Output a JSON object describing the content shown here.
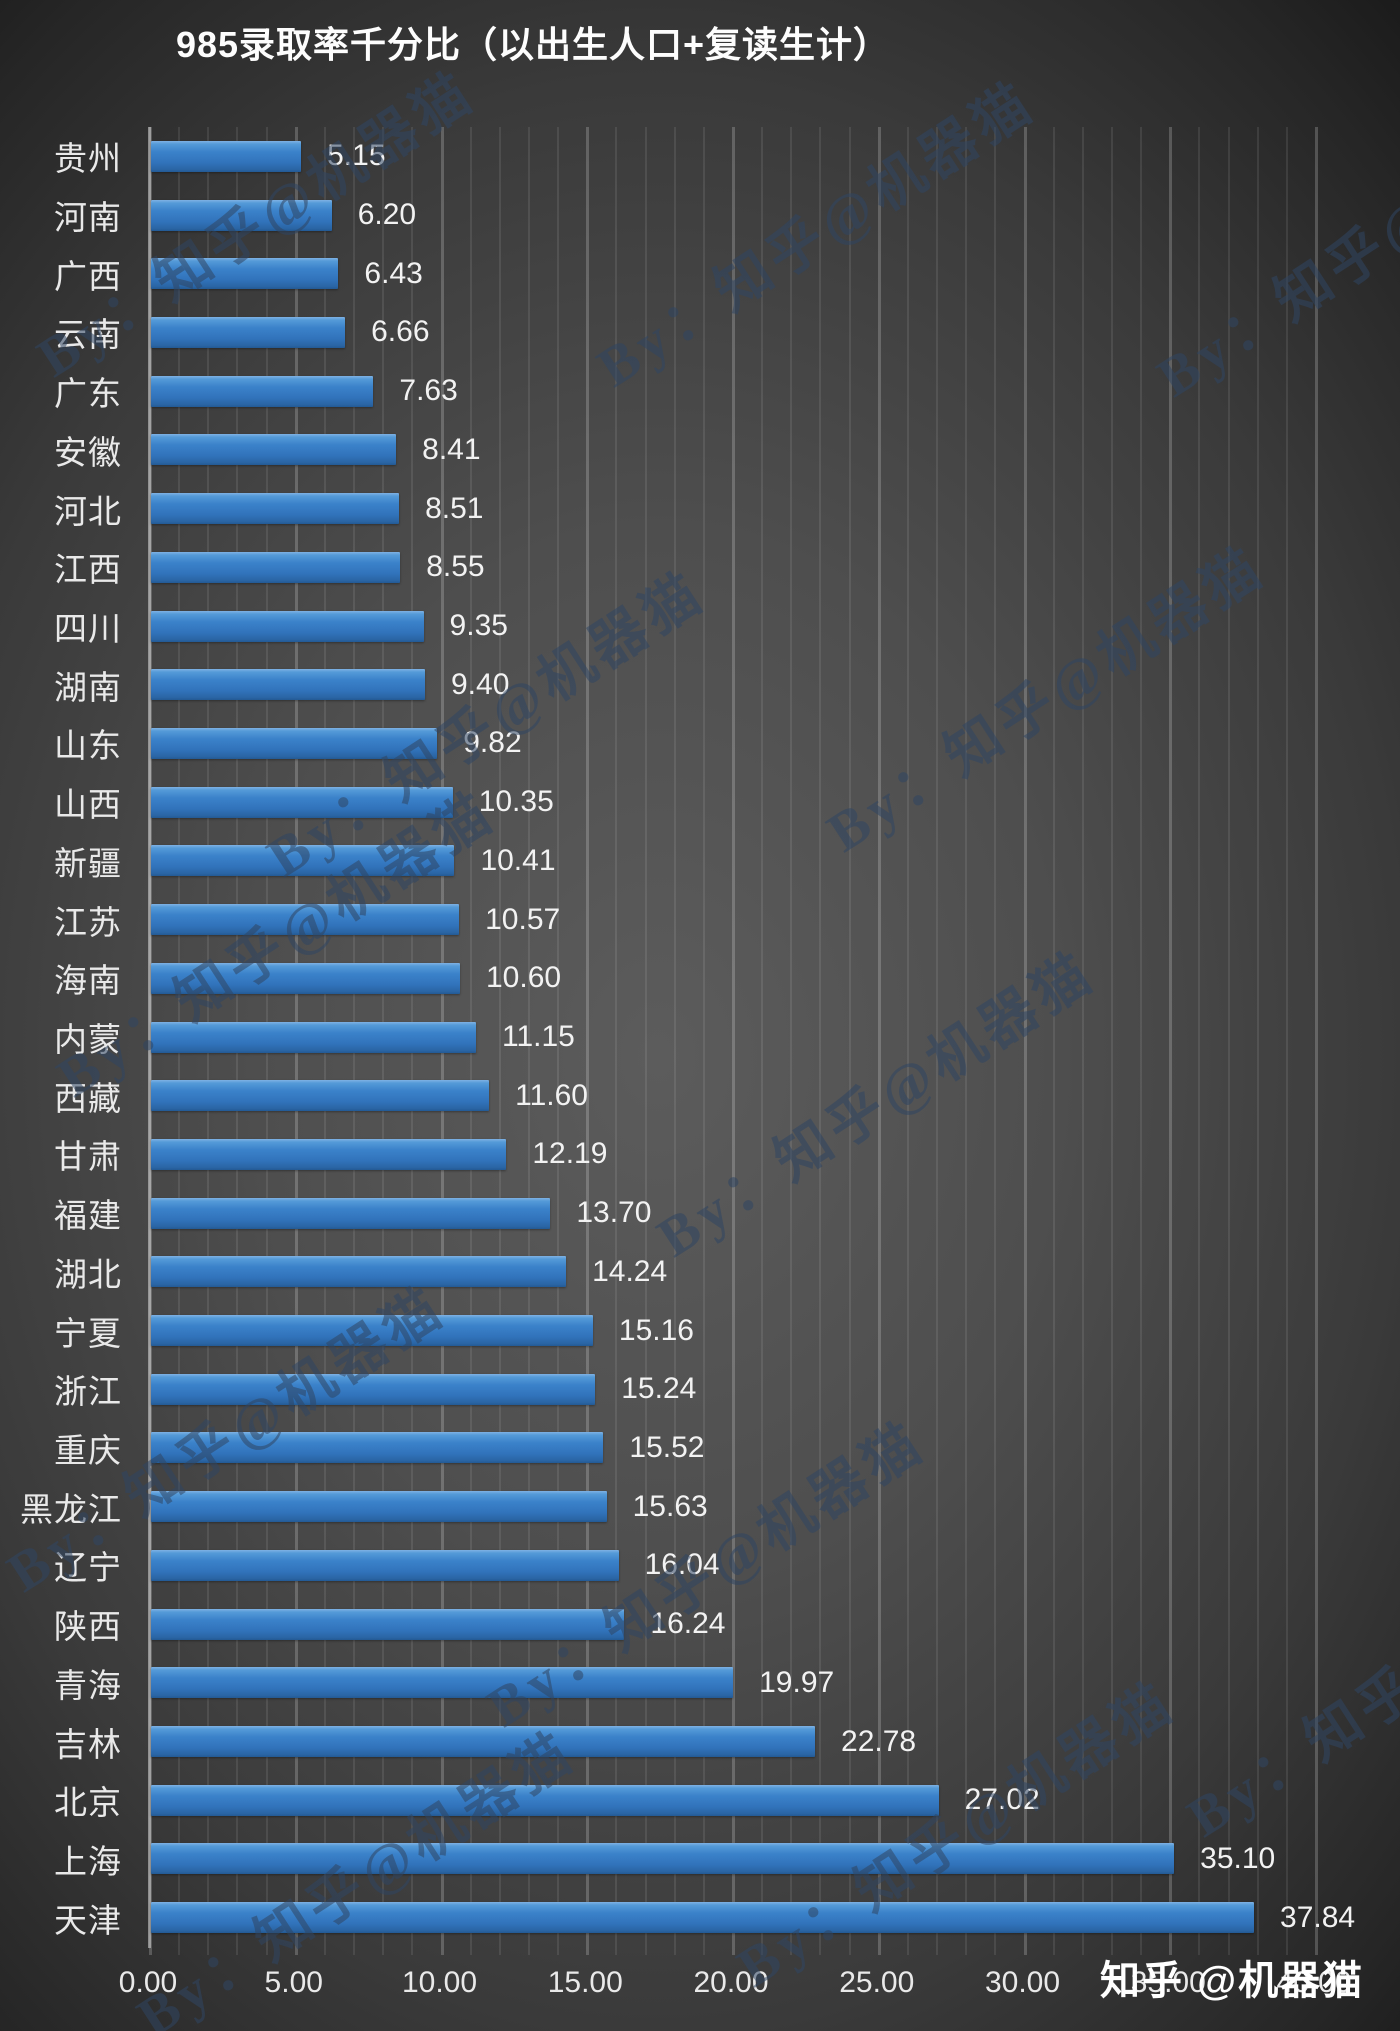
{
  "chart_data": {
    "type": "bar",
    "orientation": "horizontal",
    "title": "985录取率千分比（以出生人口+复读生计）",
    "categories": [
      "贵州",
      "河南",
      "广西",
      "云南",
      "广东",
      "安徽",
      "河北",
      "江西",
      "四川",
      "湖南",
      "山东",
      "山西",
      "新疆",
      "江苏",
      "海南",
      "内蒙",
      "西藏",
      "甘肃",
      "福建",
      "湖北",
      "宁夏",
      "浙江",
      "重庆",
      "黑龙江",
      "辽宁",
      "陕西",
      "青海",
      "吉林",
      "北京",
      "上海",
      "天津"
    ],
    "values": [
      5.15,
      6.2,
      6.43,
      6.66,
      7.63,
      8.41,
      8.51,
      8.55,
      9.35,
      9.4,
      9.82,
      10.35,
      10.41,
      10.57,
      10.6,
      11.15,
      11.6,
      12.19,
      13.7,
      14.24,
      15.16,
      15.24,
      15.52,
      15.63,
      16.04,
      16.24,
      19.97,
      22.78,
      27.02,
      35.1,
      37.84
    ],
    "value_labels": [
      "5.15",
      "6.20",
      "6.43",
      "6.66",
      "7.63",
      "8.41",
      "8.51",
      "8.55",
      "9.35",
      "9.40",
      "9.82",
      "10.35",
      "10.41",
      "10.57",
      "10.60",
      "11.15",
      "11.60",
      "12.19",
      "13.70",
      "14.24",
      "15.16",
      "15.24",
      "15.52",
      "15.63",
      "16.04",
      "16.24",
      "19.97",
      "22.78",
      "27.02",
      "35.10",
      "37.84"
    ],
    "xlabel": "",
    "ylabel": "",
    "xlim": [
      0,
      40
    ],
    "tick_step": 5,
    "minor_tick_step": 1,
    "tick_labels": [
      "0.00",
      "5.00",
      "10.00",
      "15.00",
      "20.00",
      "25.00",
      "30.00",
      "35.00",
      "40.00"
    ],
    "grid": "vertical, minor every 1 unit, major every 5 units",
    "legend": "none"
  },
  "watermark": {
    "diagonal_text": "By：知乎@机器猫",
    "footer_text": "知乎 @机器猫"
  },
  "colors": {
    "bar": "#3A7EC8",
    "bar_highlight": "#7FB2E4",
    "bar_shadow": "#235A94",
    "background_center": "#5C5C5C",
    "background_edge": "#161616",
    "text": "#E9E9E9",
    "value_text": "#F2F2F2",
    "title_text": "#FDFDFD",
    "watermark_diagonal": "#2F4663",
    "watermark_footer": "#FFFFFF"
  }
}
